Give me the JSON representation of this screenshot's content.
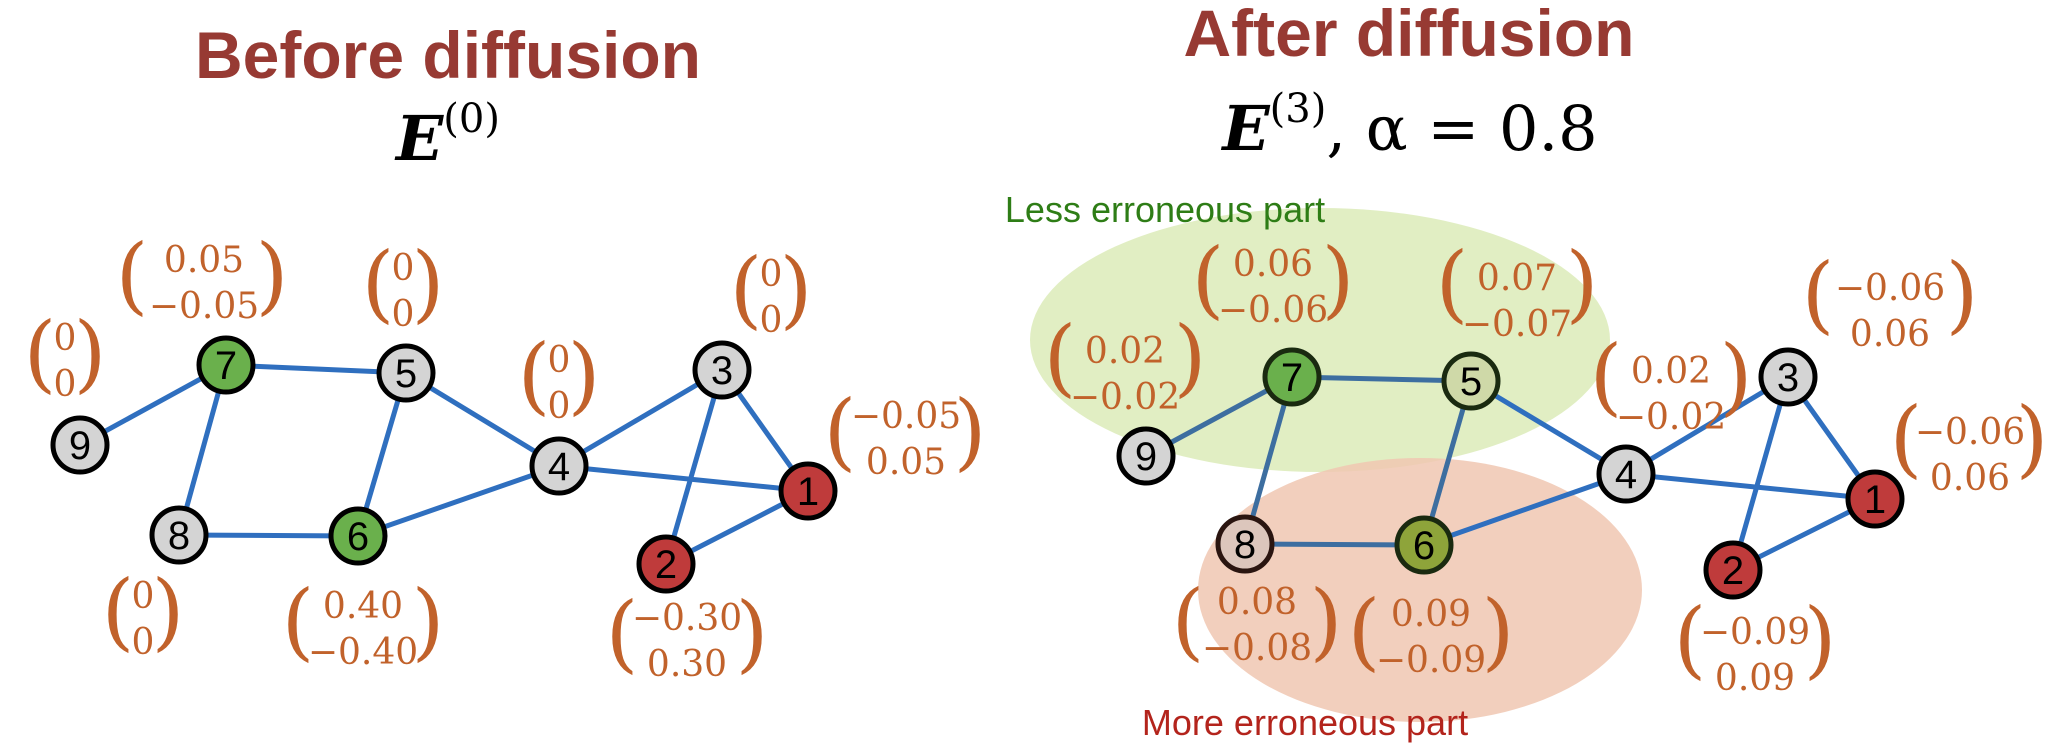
{
  "colors": {
    "title": "#973a33",
    "vector_text": "#c1622b",
    "edge": "#2f6fbf",
    "node_gray": "#d4d4d4",
    "node_green": "#6ab04c",
    "node_red": "#bf3b3b",
    "less_region": "#dcebb8",
    "more_region": "#f0c7b2",
    "less_label": "#2e7d16",
    "more_label": "#b3241c"
  },
  "before": {
    "title": "Before diffusion",
    "formula": {
      "symbol": "E",
      "superscript": "(0)"
    },
    "nodes": [
      {
        "id": "1",
        "color": "red"
      },
      {
        "id": "2",
        "color": "red"
      },
      {
        "id": "3",
        "color": "gray"
      },
      {
        "id": "4",
        "color": "gray"
      },
      {
        "id": "5",
        "color": "gray"
      },
      {
        "id": "6",
        "color": "green"
      },
      {
        "id": "7",
        "color": "green"
      },
      {
        "id": "8",
        "color": "gray"
      },
      {
        "id": "9",
        "color": "gray"
      }
    ],
    "vectors": {
      "n1": [
        "−0.05",
        "0.05"
      ],
      "n2": [
        "−0.30",
        "0.30"
      ],
      "n3": [
        "0",
        "0"
      ],
      "n4": [
        "0",
        "0"
      ],
      "n5": [
        "0",
        "0"
      ],
      "n6": [
        "0.40",
        "−0.40"
      ],
      "n7": [
        "0.05",
        "−0.05"
      ],
      "n8": [
        "0",
        "0"
      ],
      "n9": [
        "0",
        "0"
      ]
    }
  },
  "after": {
    "title": "After diffusion",
    "formula": {
      "symbol": "E",
      "superscript": "(3)",
      "rest": ", α = 0.8"
    },
    "less_label": "Less erroneous part",
    "more_label": "More erroneous part",
    "nodes": [
      {
        "id": "1",
        "color": "red"
      },
      {
        "id": "2",
        "color": "red"
      },
      {
        "id": "3",
        "color": "gray"
      },
      {
        "id": "4",
        "color": "gray"
      },
      {
        "id": "5",
        "color": "olive-light"
      },
      {
        "id": "6",
        "color": "olive"
      },
      {
        "id": "7",
        "color": "green"
      },
      {
        "id": "8",
        "color": "rose-gray"
      },
      {
        "id": "9",
        "color": "gray"
      }
    ],
    "vectors": {
      "n1": [
        "−0.06",
        "0.06"
      ],
      "n2": [
        "−0.09",
        "0.09"
      ],
      "n3": [
        "−0.06",
        "0.06"
      ],
      "n4": [
        "0.02",
        "−0.02"
      ],
      "n5": [
        "0.07",
        "−0.07"
      ],
      "n6": [
        "0.09",
        "−0.09"
      ],
      "n7": [
        "0.06",
        "−0.06"
      ],
      "n8": [
        "0.08",
        "−0.08"
      ],
      "n9": [
        "0.02",
        "−0.02"
      ]
    }
  }
}
